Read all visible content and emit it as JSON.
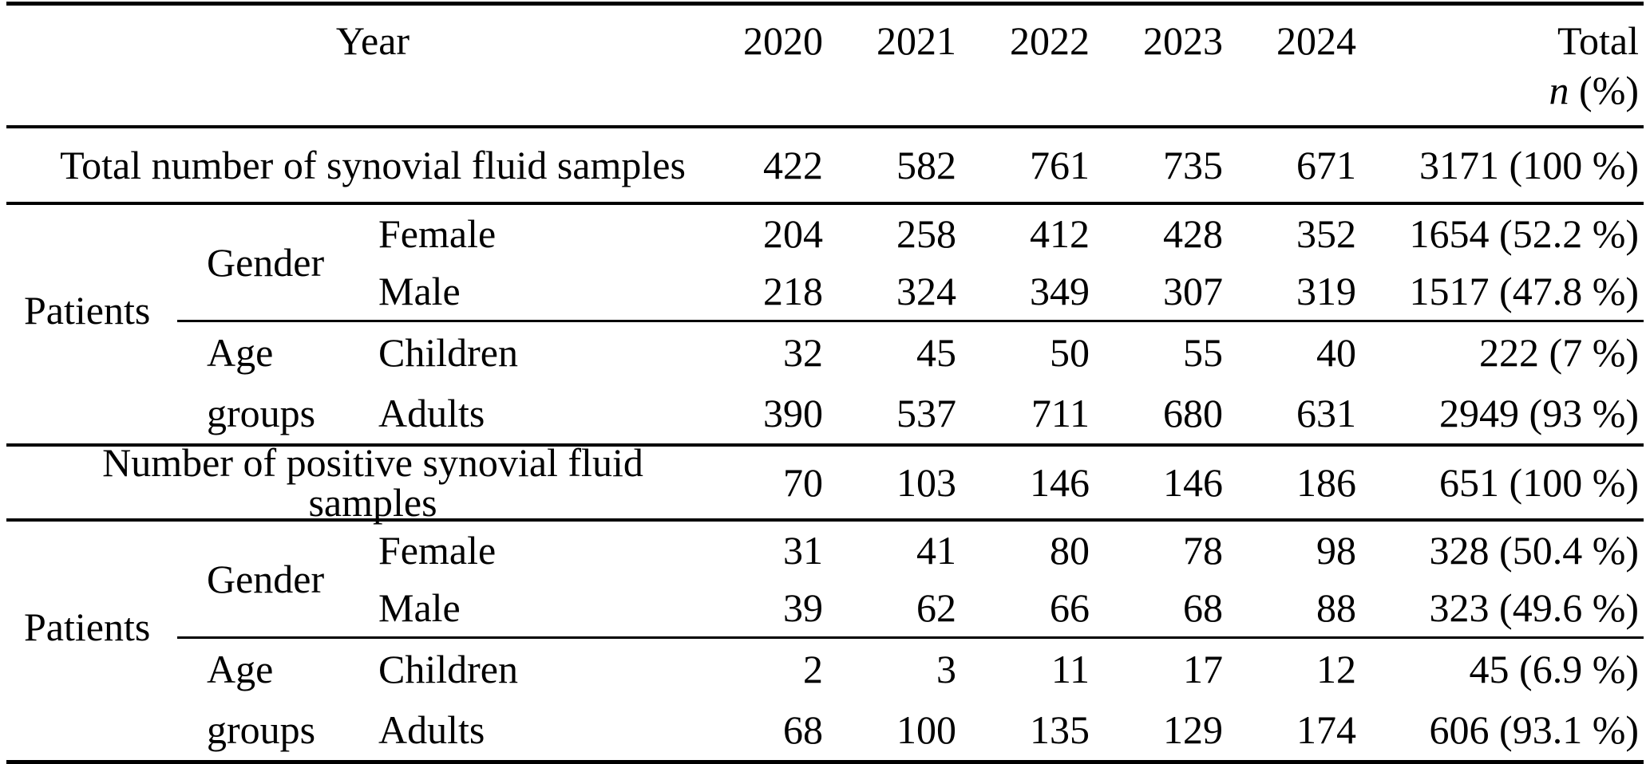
{
  "colors": {
    "text": "#000000",
    "background": "#ffffff",
    "rule": "#000000"
  },
  "header": {
    "year": "Year",
    "years": [
      "2020",
      "2021",
      "2022",
      "2023",
      "2024"
    ],
    "total": "Total",
    "n": "n",
    "pct": "(%)"
  },
  "summary1": {
    "label": "Total number of synovial fluid samples",
    "values": [
      "422",
      "582",
      "761",
      "735",
      "671"
    ],
    "total": "3171 (100 %)"
  },
  "patients1": {
    "label": "Patients",
    "gender": {
      "label": "Gender",
      "female": {
        "label": "Female",
        "values": [
          "204",
          "258",
          "412",
          "428",
          "352"
        ],
        "total": "1654 (52.2 %)"
      },
      "male": {
        "label": "Male",
        "values": [
          "218",
          "324",
          "349",
          "307",
          "319"
        ],
        "total": "1517 (47.8 %)"
      }
    },
    "age": {
      "line1": "Age",
      "line2": "groups",
      "children": {
        "label": "Children",
        "values": [
          "32",
          "45",
          "50",
          "55",
          "40"
        ],
        "total": "222 (7 %)"
      },
      "adults": {
        "label": "Adults",
        "values": [
          "390",
          "537",
          "711",
          "680",
          "631"
        ],
        "total": "2949 (93 %)"
      }
    }
  },
  "summary2": {
    "label": "Number of positive synovial fluid samples",
    "values": [
      "70",
      "103",
      "146",
      "146",
      "186"
    ],
    "total": "651 (100 %)"
  },
  "patients2": {
    "label": "Patients",
    "gender": {
      "label": "Gender",
      "female": {
        "label": "Female",
        "values": [
          "31",
          "41",
          "80",
          "78",
          "98"
        ],
        "total": "328 (50.4 %)"
      },
      "male": {
        "label": "Male",
        "values": [
          "39",
          "62",
          "66",
          "68",
          "88"
        ],
        "total": "323 (49.6 %)"
      }
    },
    "age": {
      "line1": "Age",
      "line2": "groups",
      "children": {
        "label": "Children",
        "values": [
          "2",
          "3",
          "11",
          "17",
          "12"
        ],
        "total": "45 (6.9 %)"
      },
      "adults": {
        "label": "Adults",
        "values": [
          "68",
          "100",
          "135",
          "129",
          "174"
        ],
        "total": "606 (93.1 %)"
      }
    }
  }
}
